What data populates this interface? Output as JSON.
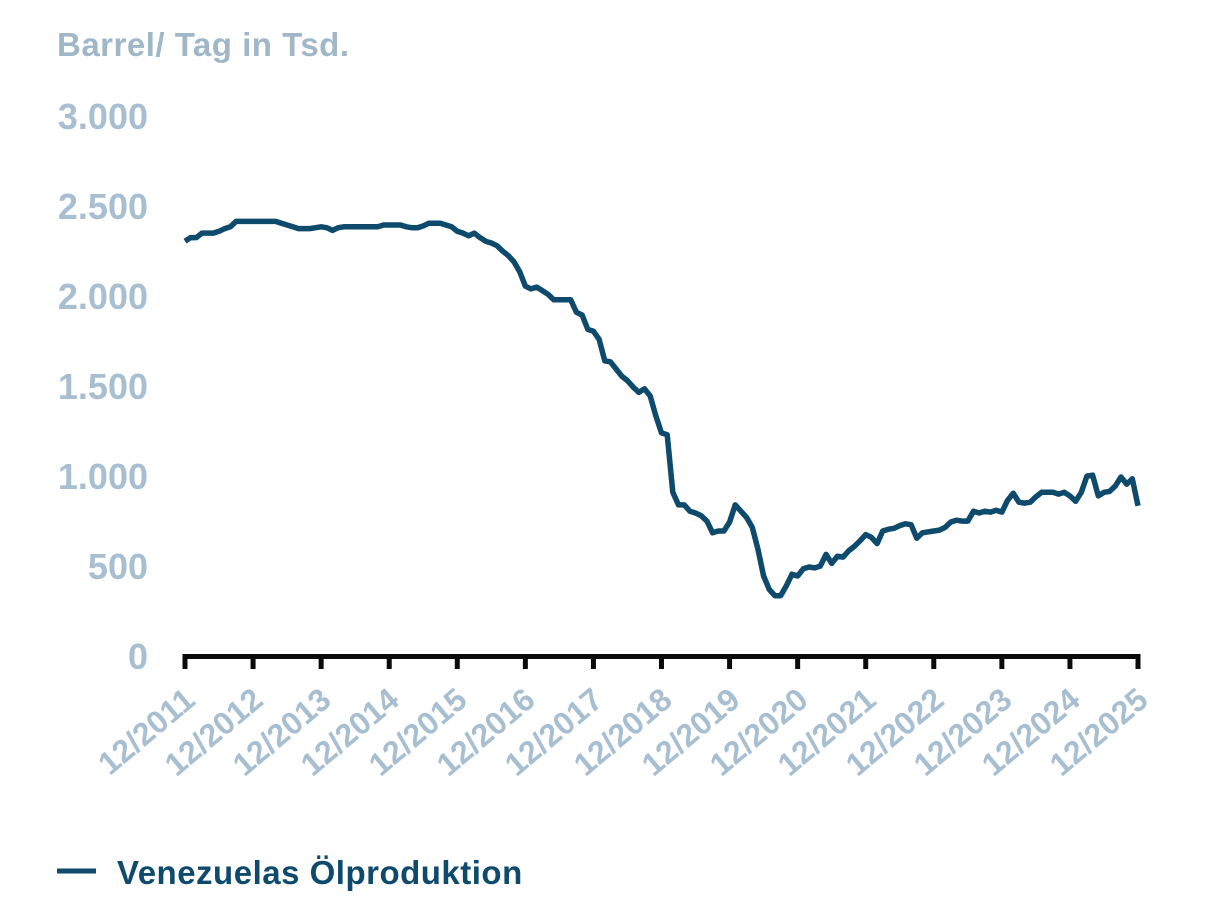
{
  "colors": {
    "line": "#0e4a6c",
    "axis": "#0b0b0c",
    "tick_labels": "#a8bfd1",
    "axis_title": "#a0b7c8",
    "legend_text": "#0e4a6c",
    "background": "#ffffff"
  },
  "chart_data": {
    "type": "line",
    "title": "Barrel/ Tag in Tsd.",
    "ylabel": "Barrel/ Tag in Tsd.",
    "ylim": [
      0,
      3000
    ],
    "grid": false,
    "legend_position": "bottom-left",
    "frequency": "monthly",
    "x_start": "12/2011",
    "x_end": "12/2025",
    "y_tick_labels": [
      "3.000",
      "2.500",
      "2.000",
      "1.500",
      "1.000",
      "500",
      "0"
    ],
    "y_tick_values": [
      3000,
      2500,
      2000,
      1500,
      1000,
      500,
      0
    ],
    "x_tick_labels": [
      "12/2011",
      "12/2012",
      "12/2013",
      "12/2014",
      "12/2015",
      "12/2016",
      "12/2017",
      "12/2018",
      "12/2019",
      "12/2020",
      "12/2021",
      "12/2022",
      "12/2023",
      "12/2024",
      "12/2025"
    ],
    "series": [
      {
        "name": "Venezuelas Ölproduktion",
        "color": "#0e4a6c",
        "values": [
          2310,
          2330,
          2330,
          2355,
          2355,
          2355,
          2365,
          2380,
          2390,
          2420,
          2420,
          2420,
          2420,
          2420,
          2420,
          2420,
          2420,
          2410,
          2400,
          2390,
          2380,
          2380,
          2380,
          2385,
          2390,
          2385,
          2370,
          2385,
          2390,
          2390,
          2390,
          2390,
          2390,
          2390,
          2390,
          2400,
          2400,
          2400,
          2400,
          2390,
          2385,
          2385,
          2395,
          2410,
          2410,
          2410,
          2400,
          2390,
          2365,
          2355,
          2340,
          2355,
          2330,
          2310,
          2300,
          2285,
          2255,
          2230,
          2195,
          2140,
          2060,
          2045,
          2055,
          2035,
          2015,
          1985,
          1985,
          1985,
          1985,
          1915,
          1900,
          1820,
          1810,
          1765,
          1645,
          1640,
          1600,
          1560,
          1535,
          1500,
          1470,
          1490,
          1450,
          1340,
          1245,
          1235,
          915,
          845,
          845,
          810,
          800,
          785,
          755,
          690,
          700,
          700,
          750,
          845,
          810,
          775,
          720,
          600,
          450,
          375,
          340,
          340,
          395,
          460,
          450,
          490,
          500,
          495,
          505,
          570,
          520,
          560,
          555,
          590,
          615,
          645,
          680,
          665,
          630,
          700,
          710,
          715,
          730,
          740,
          735,
          660,
          690,
          695,
          700,
          705,
          720,
          750,
          760,
          755,
          755,
          810,
          800,
          810,
          805,
          815,
          805,
          870,
          910,
          860,
          855,
          860,
          890,
          915,
          915,
          915,
          905,
          915,
          895,
          865,
          915,
          1005,
          1010,
          895,
          915,
          920,
          950,
          1000,
          960,
          990,
          840
        ]
      }
    ]
  }
}
